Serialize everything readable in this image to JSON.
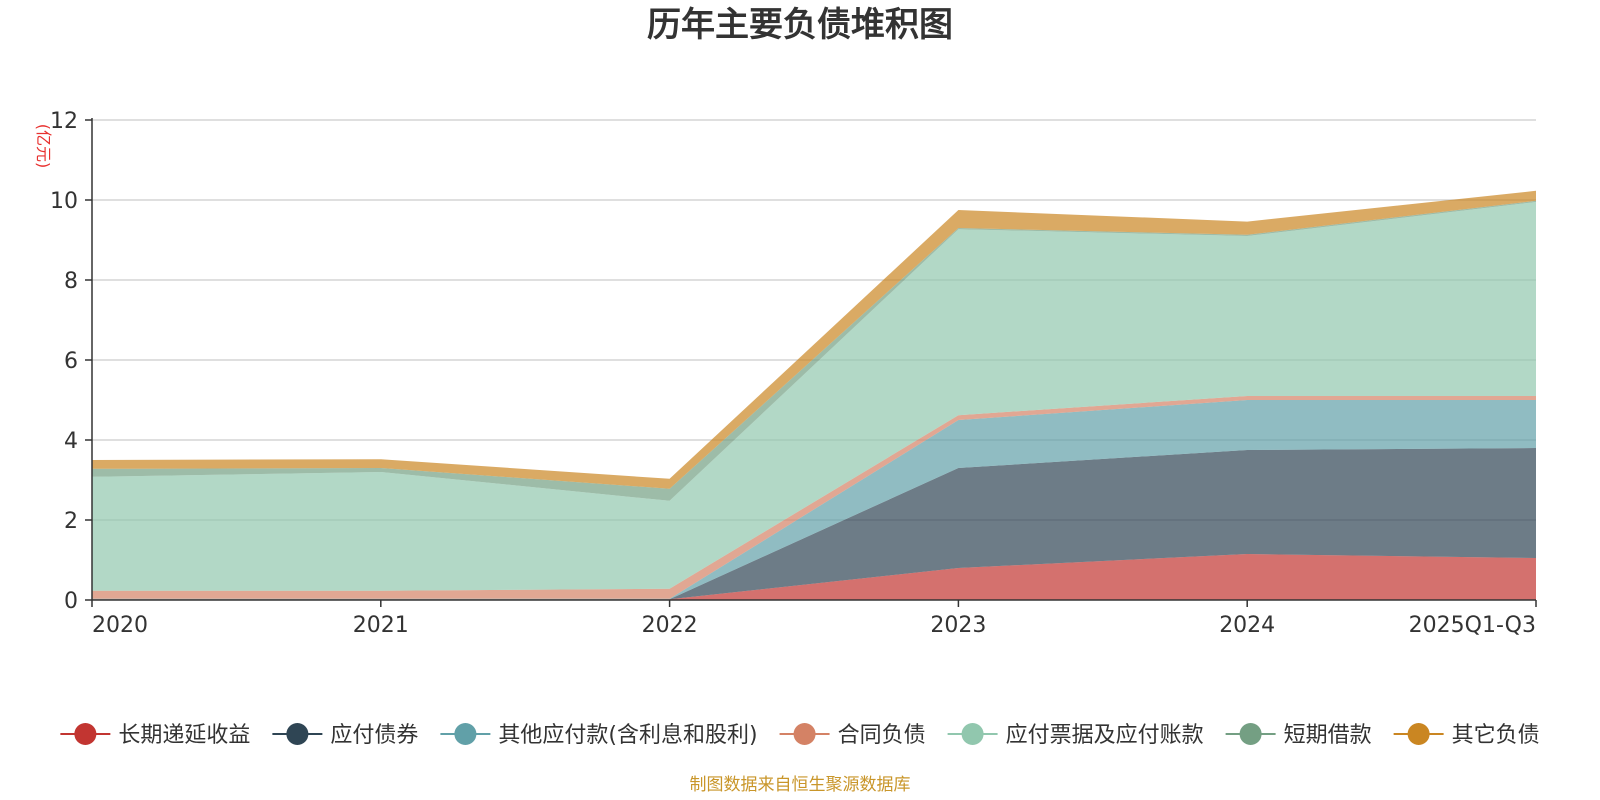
{
  "colors": {
    "axis": "#333333",
    "grid": "#cccccc",
    "unit": "#e8312f",
    "source": "#c9962a"
  },
  "chart_data": {
    "type": "area",
    "stacked": true,
    "title": "历年主要负债堆积图",
    "unit": "(亿元)",
    "categories": [
      "2020",
      "2021",
      "2022",
      "2023",
      "2024",
      "2025Q1-Q3"
    ],
    "ylim": [
      0,
      12
    ],
    "yticks": [
      0,
      2,
      4,
      6,
      8,
      10,
      12
    ],
    "grid": true,
    "legend_position": "bottom",
    "source": "制图数据来自恒生聚源数据库",
    "series": [
      {
        "name": "长期递延收益",
        "color": "#c23531",
        "values": [
          0.02,
          0.02,
          0.02,
          0.8,
          1.15,
          1.05
        ]
      },
      {
        "name": "应付债券",
        "color": "#2f4554",
        "values": [
          0,
          0,
          0,
          2.5,
          2.6,
          2.75
        ]
      },
      {
        "name": "其他应付款(含利息和股利)",
        "color": "#61a0a8",
        "values": [
          0.01,
          0.01,
          0.01,
          1.2,
          1.25,
          1.2
        ]
      },
      {
        "name": "合同负债",
        "color": "#d48265",
        "values": [
          0.2,
          0.2,
          0.25,
          0.12,
          0.1,
          0.1
        ]
      },
      {
        "name": "应付票据及应付账款",
        "color": "#91c7ae",
        "values": [
          2.85,
          2.97,
          2.2,
          4.65,
          4.0,
          4.85
        ]
      },
      {
        "name": "短期借款",
        "color": "#749f83",
        "values": [
          0.2,
          0.1,
          0.3,
          0.03,
          0.03,
          0.03
        ]
      },
      {
        "name": "其它负债",
        "color": "#ca8622",
        "values": [
          0.22,
          0.22,
          0.25,
          0.45,
          0.33,
          0.25
        ]
      }
    ]
  }
}
